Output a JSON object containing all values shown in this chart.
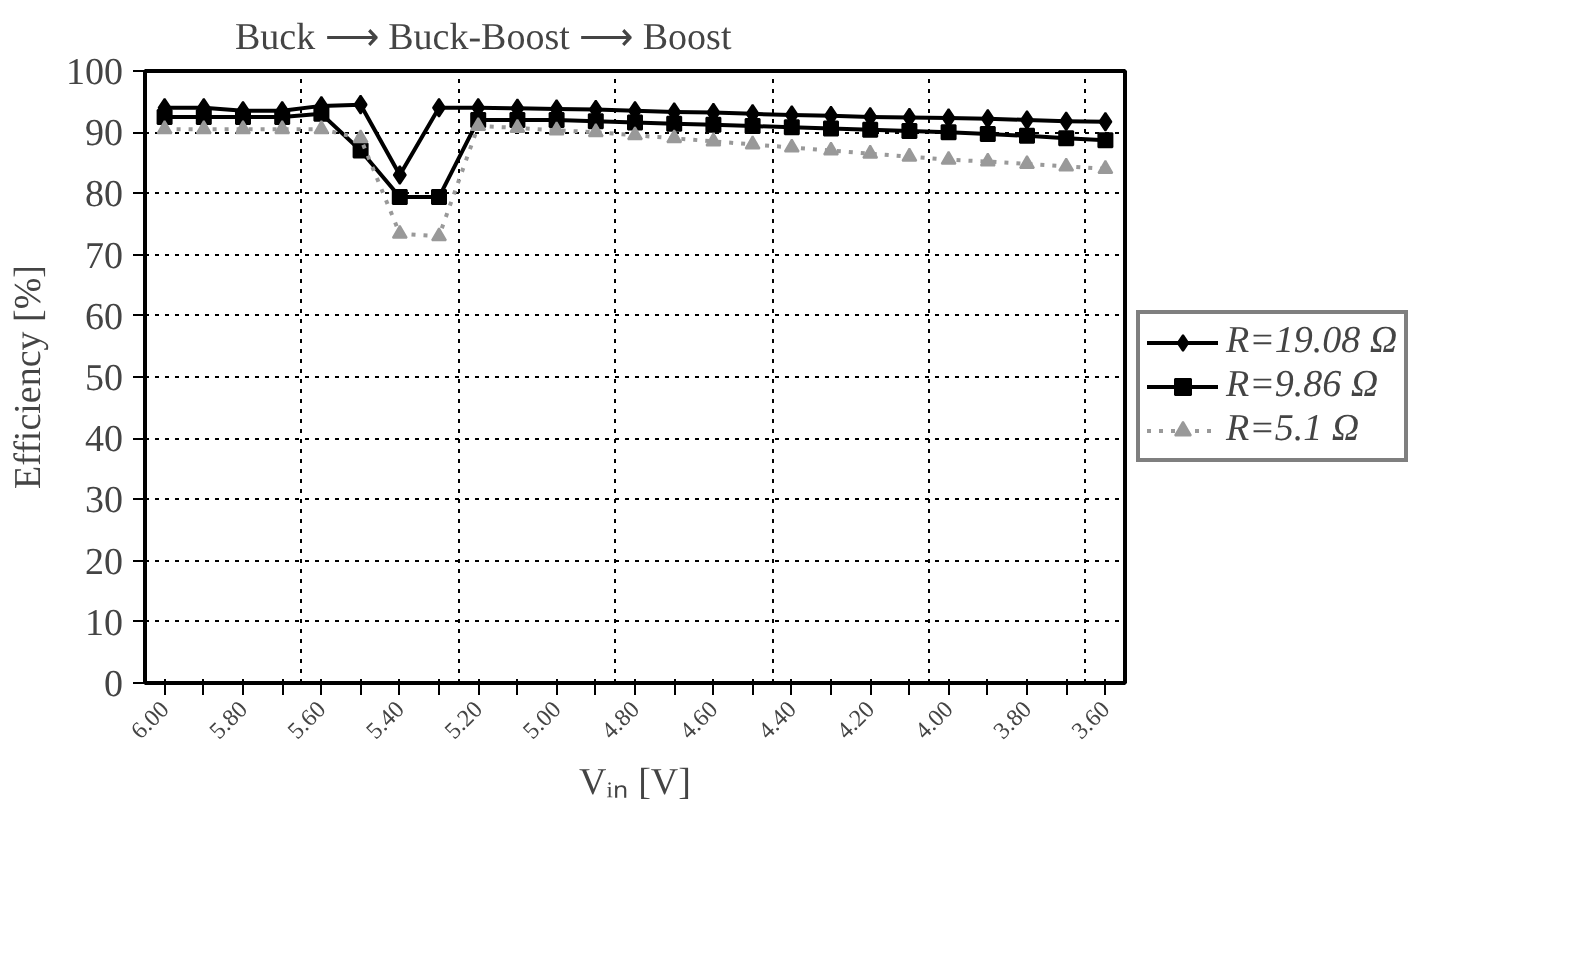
{
  "chart_data": {
    "type": "line",
    "annotations": [
      "Buck ⟶ Buck-Boost ⟶ Boost"
    ],
    "xlabel": "Vᵢₙ [V]",
    "ylabel": "Efficiency [%]",
    "categories": [
      "6.00",
      null,
      "5.80",
      null,
      "5.60",
      null,
      "5.40",
      null,
      "5.20",
      null,
      "5.00",
      null,
      "4.80",
      null,
      "4.60",
      null,
      "4.40",
      null,
      "4.20",
      null,
      "4.00",
      null,
      "3.80",
      null,
      "3.60"
    ],
    "ylim": [
      0,
      100
    ],
    "yticks": [
      0,
      10,
      20,
      30,
      40,
      50,
      60,
      70,
      80,
      90,
      100
    ],
    "grid": true,
    "legend": "right",
    "series": [
      {
        "name": "R=19.08 Ω",
        "color": "#000000",
        "marker": "diamond",
        "line_style": "solid",
        "values": [
          94,
          94,
          93.5,
          93.5,
          94.3,
          94.5,
          83,
          94,
          94,
          93.9,
          93.8,
          93.7,
          93.5,
          93.3,
          93.2,
          93,
          92.8,
          92.7,
          92.5,
          92.4,
          92.3,
          92.2,
          92,
          91.8,
          91.7
        ]
      },
      {
        "name": "R=9.86 Ω",
        "color": "#000000",
        "marker": "square",
        "line_style": "solid",
        "values": [
          92.5,
          92.5,
          92.5,
          92.5,
          93,
          87,
          79.4,
          79.4,
          92,
          92,
          92,
          91.8,
          91.6,
          91.4,
          91.2,
          91,
          90.8,
          90.6,
          90.4,
          90.2,
          90,
          89.7,
          89.4,
          89,
          88.7
        ]
      },
      {
        "name": "R=5.1 Ω",
        "color": "#999999",
        "marker": "triangle",
        "line_style": "dotted",
        "values": [
          90.5,
          90.5,
          90.5,
          90.5,
          90.5,
          89,
          73.4,
          73,
          91,
          90.7,
          90.3,
          90,
          89.5,
          89,
          88.5,
          88,
          87.5,
          87,
          86.5,
          86,
          85.5,
          85.2,
          84.8,
          84.4,
          84
        ]
      }
    ]
  }
}
